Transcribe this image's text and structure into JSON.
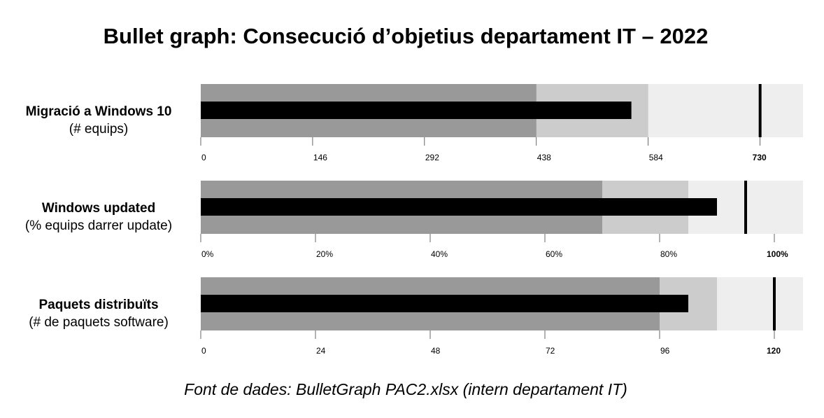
{
  "title": "Bullet graph: Consecució d’objetius departament IT – 2022",
  "source": "Font de dades: BulletGraph PAC2.xlsx (intern departament IT)",
  "colors": {
    "range_dark": "#999999",
    "range_mid": "#cccccc",
    "range_light": "#eeeeee",
    "measure": "#000000",
    "target": "#000000"
  },
  "chart_data": [
    {
      "type": "bullet",
      "label": "Migració a Windows 10",
      "sublabel": "(# equips)",
      "min": 0,
      "max": 786,
      "ranges": [
        438,
        584,
        786
      ],
      "value": 562,
      "target": 730,
      "ticks": [
        0,
        146,
        292,
        438,
        584,
        730
      ],
      "tick_labels": [
        "0",
        "146",
        "292",
        "438",
        "584",
        "730"
      ],
      "bold_tick": 730
    },
    {
      "type": "bullet",
      "label": "Windows updated",
      "sublabel": "(% equips darrer update)",
      "min": 0,
      "max": 105,
      "ranges": [
        70,
        85,
        105
      ],
      "value": 90,
      "target": 95,
      "ticks": [
        0,
        20,
        40,
        60,
        80,
        100
      ],
      "tick_labels": [
        "0%",
        "20%",
        "40%",
        "60%",
        "80%",
        "100%"
      ],
      "bold_tick": 100
    },
    {
      "type": "bullet",
      "label": "Paquets distribuïts",
      "sublabel": "(# de paquets software)",
      "min": 0,
      "max": 126,
      "ranges": [
        96,
        108,
        126
      ],
      "value": 102,
      "target": 120,
      "ticks": [
        0,
        24,
        48,
        72,
        96,
        120
      ],
      "tick_labels": [
        "0",
        "24",
        "48",
        "72",
        "96",
        "120"
      ],
      "bold_tick": 120
    }
  ]
}
